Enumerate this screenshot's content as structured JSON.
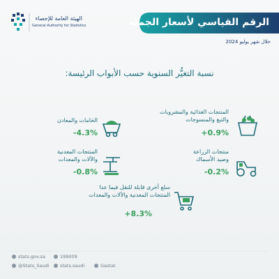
{
  "header": {
    "org_ar": "الهيئة العامة للإحصاء",
    "org_en": "General Authority for Statistics",
    "title": "الرقم القياسي لأسعار الجملة",
    "subtitle": "خلال شهر يوليو 2024"
  },
  "heading": "نسبة التغيُّر السنوية حسب الأبواب الرئيسة:",
  "items": [
    {
      "label_lines": [
        "المنتجات الغذائية والمشروبات",
        "والتبغ والمنسوجات"
      ],
      "value": "+0.9%"
    },
    {
      "label_lines": [
        "الخامات والمعادن"
      ],
      "value": "-4.3%"
    },
    {
      "label_lines": [
        "منتجات الزراعة",
        "وصيد الأسماك"
      ],
      "value": "-0.2%"
    },
    {
      "label_lines": [
        "المنتجات المعدنية",
        "والآلات والمعدات"
      ],
      "value": "-0.8%"
    },
    {
      "label_lines": [
        "سلع أخرى قابلة للنقل فيما عدا",
        "المنتجات المعدنية والآلات والمعدات"
      ],
      "value": "+8.3%"
    }
  ],
  "footer": {
    "website": "stats.gov.sa",
    "phone": "199009",
    "twitter": "@Stats_Saudi",
    "instagram": "stats.saudi",
    "brand": "Gastat"
  }
}
